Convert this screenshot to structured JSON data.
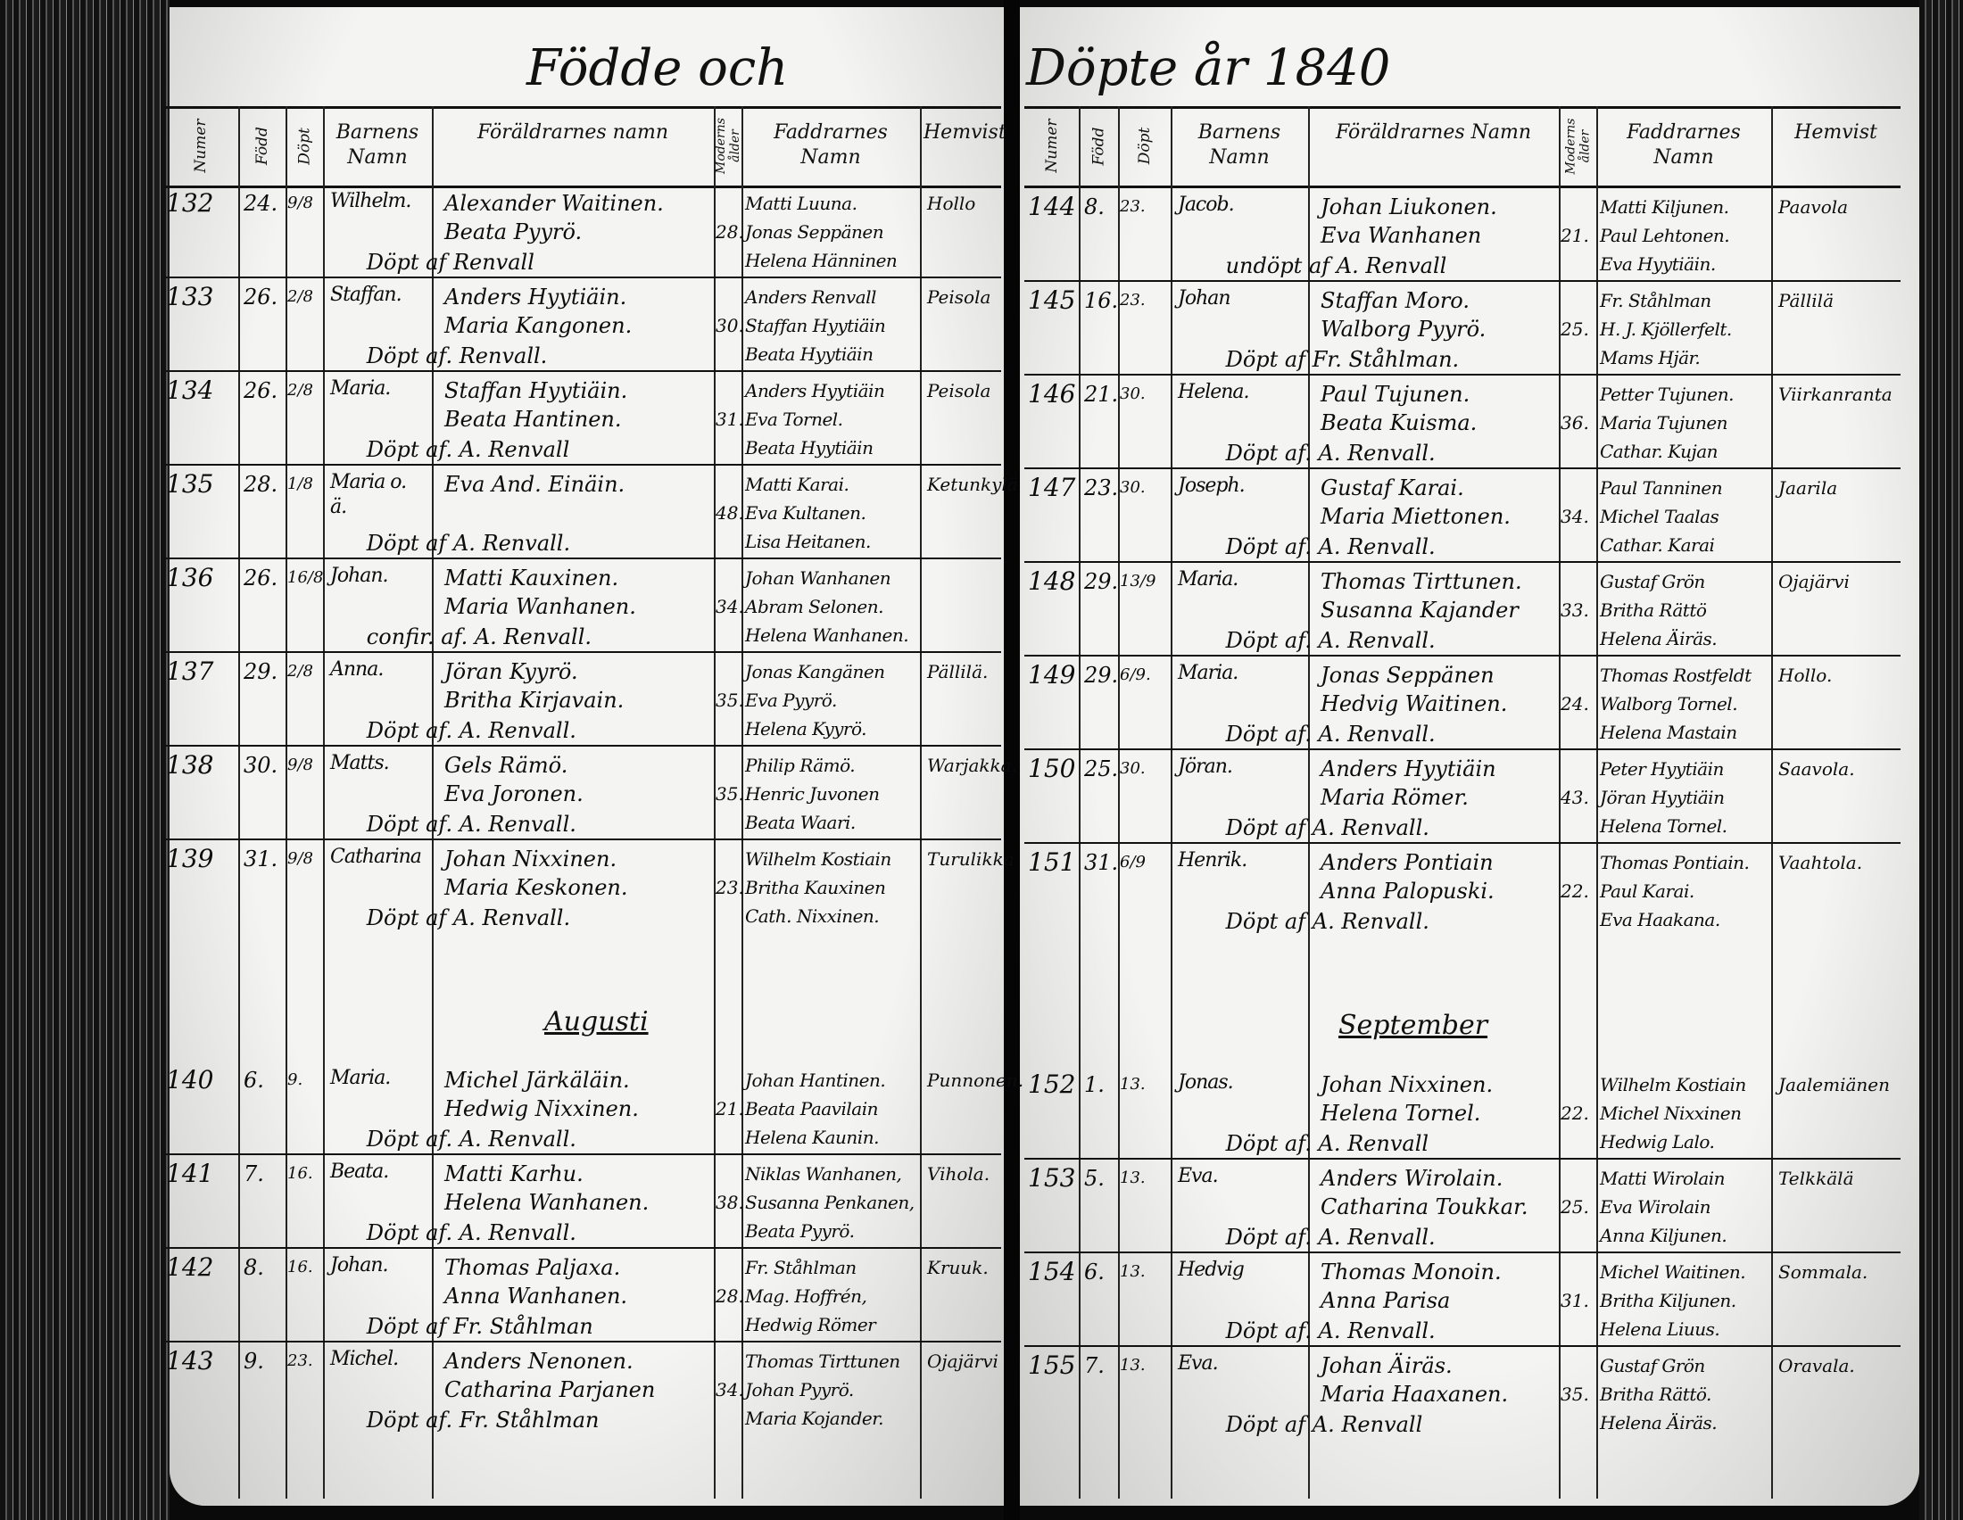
{
  "title": {
    "left": "Födde och",
    "right": "Döpte år 1840"
  },
  "headers": {
    "left": [
      "Numer",
      "Född",
      "Döpt",
      "Barnens Namn",
      "Föräldrarnes namn",
      "Moderns ålder",
      "Faddrarnes Namn",
      "Hemvist"
    ],
    "right": [
      "Numer",
      "Född",
      "Döpt",
      "Barnens Namn",
      "Föräldrarnes Namn",
      "Moderns ålder",
      "Faddrarnes Namn",
      "Hemvist"
    ]
  },
  "months": {
    "left": "Augusti",
    "right": "September"
  },
  "left_entries": [
    {
      "num": "132",
      "born": "24.",
      "baptized": "9/8",
      "child": "Wilhelm.",
      "parents": [
        "Alexander Waitinen.",
        "Beata Pyyrö."
      ],
      "baptized_by": "Döpt af Renvall",
      "mother_age": "28.",
      "godparents": [
        "Matti Luuna.",
        "Jonas Seppänen",
        "Helena Hänninen"
      ],
      "residence": "Hollo"
    },
    {
      "num": "133",
      "born": "26.",
      "baptized": "2/8",
      "child": "Staffan.",
      "parents": [
        "Anders Hyytiäin.",
        "Maria Kangonen."
      ],
      "baptized_by": "Döpt af. Renvall.",
      "mother_age": "30.",
      "godparents": [
        "Anders Renvall",
        "Staffan Hyytiäin",
        "Beata Hyytiäin"
      ],
      "residence": "Peisola"
    },
    {
      "num": "134",
      "born": "26.",
      "baptized": "2/8",
      "child": "Maria.",
      "parents": [
        "Staffan Hyytiäin.",
        "Beata Hantinen."
      ],
      "baptized_by": "Döpt af. A. Renvall",
      "mother_age": "31.",
      "godparents": [
        "Anders Hyytiäin",
        "Eva Tornel.",
        "Beata Hyytiäin"
      ],
      "residence": "Peisola"
    },
    {
      "num": "135",
      "born": "28.",
      "baptized": "1/8",
      "child": "Maria o. ä.",
      "parents": [
        "Eva And. Einäin."
      ],
      "baptized_by": "Döpt af A. Renvall.",
      "mother_age": "48.",
      "godparents": [
        "Matti Karai.",
        "Eva Kultanen.",
        "Lisa Heitanen."
      ],
      "residence": "Ketunkylä"
    },
    {
      "num": "136",
      "born": "26.",
      "baptized": "16/8",
      "child": "Johan.",
      "parents": [
        "Matti Kauxinen.",
        "Maria Wanhanen."
      ],
      "baptized_by": "confir. af. A. Renvall.",
      "mother_age": "34.",
      "godparents": [
        "Johan Wanhanen",
        "Abram Selonen.",
        "Helena Wanhanen."
      ],
      "residence": ""
    },
    {
      "num": "137",
      "born": "29.",
      "baptized": "2/8",
      "child": "Anna.",
      "parents": [
        "Jöran Kyyrö.",
        "Britha Kirjavain."
      ],
      "baptized_by": "Döpt af. A. Renvall.",
      "mother_age": "35.",
      "godparents": [
        "Jonas Kangänen",
        "Eva Pyyrö.",
        "Helena Kyyrö."
      ],
      "residence": "Pällilä."
    },
    {
      "num": "138",
      "born": "30.",
      "baptized": "9/8",
      "child": "Matts.",
      "parents": [
        "Gels Rämö.",
        "Eva Joronen."
      ],
      "baptized_by": "Döpt af. A. Renvall.",
      "mother_age": "35.",
      "godparents": [
        "Philip Rämö.",
        "Henric Juvonen",
        "Beata Waari."
      ],
      "residence": "Warjakka."
    },
    {
      "num": "139",
      "born": "31.",
      "baptized": "9/8",
      "child": "Catharina",
      "parents": [
        "Johan Nixxinen.",
        "Maria Keskonen."
      ],
      "baptized_by": "Döpt af A. Renvall.",
      "mother_age": "23.",
      "godparents": [
        "Wilhelm Kostiain",
        "Britha Kauxinen",
        "Cath. Nixxinen."
      ],
      "residence": "Turulikka"
    },
    {
      "num": "140",
      "born": "6.",
      "baptized": "9.",
      "child": "Maria.",
      "parents": [
        "Michel Järkäläin.",
        "Hedwig Nixxinen."
      ],
      "baptized_by": "Döpt af. A. Renvall.",
      "mother_age": "21.",
      "godparents": [
        "Johan Hantinen.",
        "Beata Paavilain",
        "Helena Kaunin."
      ],
      "residence": "Punnonen."
    },
    {
      "num": "141",
      "born": "7.",
      "baptized": "16.",
      "child": "Beata.",
      "parents": [
        "Matti Karhu.",
        "Helena Wanhanen."
      ],
      "baptized_by": "Döpt af. A. Renvall.",
      "mother_age": "38.",
      "godparents": [
        "Niklas Wanhanen,",
        "Susanna Penkanen,",
        "Beata Pyyrö."
      ],
      "residence": "Vihola."
    },
    {
      "num": "142",
      "born": "8.",
      "baptized": "16.",
      "child": "Johan.",
      "parents": [
        "Thomas Paljaxa.",
        "Anna Wanhanen."
      ],
      "baptized_by": "Döpt af Fr. Ståhlman",
      "mother_age": "28.",
      "godparents": [
        "Fr. Ståhlman",
        "Mag. Hoffrén,",
        "Hedwig Römer"
      ],
      "residence": "Kruuk."
    },
    {
      "num": "143",
      "born": "9.",
      "baptized": "23.",
      "child": "Michel.",
      "parents": [
        "Anders Nenonen.",
        "Catharina Parjanen"
      ],
      "baptized_by": "Döpt af. Fr. Ståhlman",
      "mother_age": "34.",
      "godparents": [
        "Thomas Tirttunen",
        "Johan Pyyrö.",
        "Maria Kojander."
      ],
      "residence": "Ojajärvi"
    }
  ],
  "right_entries": [
    {
      "num": "144",
      "born": "8.",
      "baptized": "23.",
      "child": "Jacob.",
      "parents": [
        "Johan Liukonen.",
        "Eva Wanhanen"
      ],
      "baptized_by": "undöpt af A. Renvall",
      "mother_age": "21.",
      "godparents": [
        "Matti Kiljunen.",
        "Paul Lehtonen.",
        "Eva Hyytiäin."
      ],
      "residence": "Paavola"
    },
    {
      "num": "145",
      "born": "16.",
      "baptized": "23.",
      "child": "Johan",
      "parents": [
        "Staffan Moro.",
        "Walborg Pyyrö."
      ],
      "baptized_by": "Döpt af Fr. Ståhlman.",
      "mother_age": "25.",
      "godparents": [
        "Fr. Ståhlman",
        "H. J. Kjöllerfelt.",
        "Mams Hjär."
      ],
      "residence": "Pällilä"
    },
    {
      "num": "146",
      "born": "21.",
      "baptized": "30.",
      "child": "Helena.",
      "parents": [
        "Paul Tujunen.",
        "Beata Kuisma."
      ],
      "baptized_by": "Döpt af. A. Renvall.",
      "mother_age": "36.",
      "godparents": [
        "Petter Tujunen.",
        "Maria Tujunen",
        "Cathar. Kujan"
      ],
      "residence": "Viirkanranta"
    },
    {
      "num": "147",
      "born": "23.",
      "baptized": "30.",
      "child": "Joseph.",
      "parents": [
        "Gustaf Karai.",
        "Maria Miettonen."
      ],
      "baptized_by": "Döpt af. A. Renvall.",
      "mother_age": "34.",
      "godparents": [
        "Paul Tanninen",
        "Michel Taalas",
        "Cathar. Karai"
      ],
      "residence": "Jaarila"
    },
    {
      "num": "148",
      "born": "29.",
      "baptized": "13/9",
      "child": "Maria.",
      "parents": [
        "Thomas Tirttunen.",
        "Susanna Kajander"
      ],
      "baptized_by": "Döpt af. A. Renvall.",
      "mother_age": "33.",
      "godparents": [
        "Gustaf Grön",
        "Britha Rättö",
        "Helena Äiräs."
      ],
      "residence": "Ojajärvi"
    },
    {
      "num": "149",
      "born": "29.",
      "baptized": "6/9.",
      "child": "Maria.",
      "parents": [
        "Jonas Seppänen",
        "Hedvig Waitinen."
      ],
      "baptized_by": "Döpt af. A. Renvall.",
      "mother_age": "24.",
      "godparents": [
        "Thomas Rostfeldt",
        "Walborg Tornel.",
        "Helena Mastain"
      ],
      "residence": "Hollo."
    },
    {
      "num": "150",
      "born": "25.",
      "baptized": "30.",
      "child": "Jöran.",
      "parents": [
        "Anders Hyytiäin",
        "Maria Römer."
      ],
      "baptized_by": "Döpt af A. Renvall.",
      "mother_age": "43.",
      "godparents": [
        "Peter Hyytiäin",
        "Jöran Hyytiäin",
        "Helena Tornel."
      ],
      "residence": "Saavola."
    },
    {
      "num": "151",
      "born": "31.",
      "baptized": "6/9",
      "child": "Henrik.",
      "parents": [
        "Anders Pontiain",
        "Anna Palopuski."
      ],
      "baptized_by": "Döpt af A. Renvall.",
      "mother_age": "22.",
      "godparents": [
        "Thomas Pontiain.",
        "Paul Karai.",
        "Eva Haakana."
      ],
      "residence": "Vaahtola."
    },
    {
      "num": "152",
      "born": "1.",
      "baptized": "13.",
      "child": "Jonas.",
      "parents": [
        "Johan Nixxinen.",
        "Helena Tornel."
      ],
      "baptized_by": "Döpt af. A. Renvall",
      "mother_age": "22.",
      "godparents": [
        "Wilhelm Kostiain",
        "Michel Nixxinen",
        "Hedwig Lalo."
      ],
      "residence": "Jaalemiänen"
    },
    {
      "num": "153",
      "born": "5.",
      "baptized": "13.",
      "child": "Eva.",
      "parents": [
        "Anders Wirolain.",
        "Catharina Toukkar."
      ],
      "baptized_by": "Döpt af. A. Renvall.",
      "mother_age": "25.",
      "godparents": [
        "Matti Wirolain",
        "Eva Wirolain",
        "Anna Kiljunen."
      ],
      "residence": "Telkkälä"
    },
    {
      "num": "154",
      "born": "6.",
      "baptized": "13.",
      "child": "Hedvig",
      "parents": [
        "Thomas Monoin.",
        "Anna Parisa"
      ],
      "baptized_by": "Döpt af. A. Renvall.",
      "mother_age": "31.",
      "godparents": [
        "Michel Waitinen.",
        "Britha Kiljunen.",
        "Helena Liuus."
      ],
      "residence": "Sommala."
    },
    {
      "num": "155",
      "born": "7.",
      "baptized": "13.",
      "child": "Eva.",
      "parents": [
        "Johan Äiräs.",
        "Maria Haaxanen."
      ],
      "baptized_by": "Döpt af A. Renvall",
      "mother_age": "35.",
      "godparents": [
        "Gustaf Grön",
        "Britha Rättö.",
        "Helena Äiräs."
      ],
      "residence": "Oravala."
    }
  ]
}
